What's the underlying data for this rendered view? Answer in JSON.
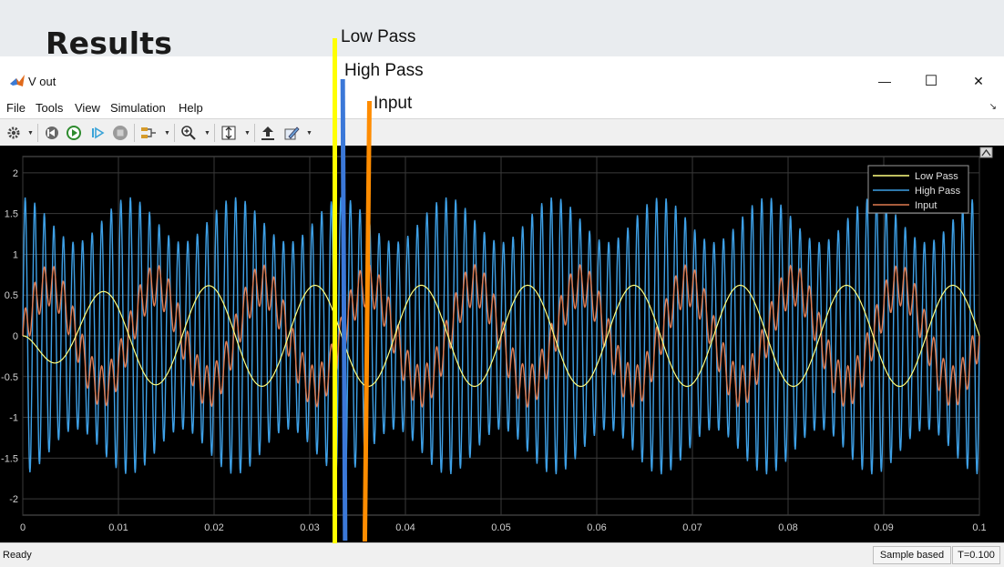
{
  "slide": {
    "title": "Results"
  },
  "window": {
    "title": "V out",
    "minimize": "—",
    "maximize": "☐",
    "close": "✕",
    "undock": "↘"
  },
  "menu": [
    "File",
    "Tools",
    "View",
    "Simulation",
    "Help"
  ],
  "toolbar_icons": [
    "settings-icon",
    "step-back-icon",
    "run-icon",
    "step-forward-icon",
    "stop-icon",
    "signal-select-icon",
    "zoom-in-icon",
    "autoscale-icon",
    "highlight-icon",
    "edit-icon"
  ],
  "annotations": [
    {
      "text": "Low Pass",
      "color": "#ffff00"
    },
    {
      "text": "High Pass",
      "color": "#3b78d8"
    },
    {
      "text": "Input",
      "color": "#ff8c00"
    }
  ],
  "status": {
    "ready": "Ready",
    "sample": "Sample based",
    "time": "T=0.100"
  },
  "chart_data": {
    "type": "line",
    "background": "#000000",
    "xlim": [
      0,
      0.1
    ],
    "ylim": [
      -2.2,
      2.2
    ],
    "xticks": [
      "0",
      "0.01",
      "0.02",
      "0.03",
      "0.04",
      "0.05",
      "0.06",
      "0.07",
      "0.08",
      "0.09",
      "0.1"
    ],
    "yticks": [
      "2",
      "1.5",
      "1",
      "0.5",
      "0",
      "-0.5",
      "-1",
      "-1.5",
      "-2"
    ],
    "grid": true,
    "legend_position": "top-right",
    "series": [
      {
        "name": "Low Pass",
        "color": "#ffff80",
        "shape": "sine",
        "amplitude": 0.62,
        "frequency_hz": 90,
        "phase_deg": 180,
        "offset": 0.0
      },
      {
        "name": "High Pass",
        "color": "#3ea0e6",
        "shape": "sine-sum",
        "amplitude_min": 1.15,
        "amplitude_max": 1.7,
        "frequency_hz": 1000,
        "envelope_frequency_hz": 90
      },
      {
        "name": "Input",
        "color": "#e07b50",
        "shape": "sine-sum",
        "low_amplitude": 0.62,
        "high_amplitude": 0.25,
        "low_frequency_hz": 90,
        "high_frequency_hz": 1000
      }
    ]
  }
}
